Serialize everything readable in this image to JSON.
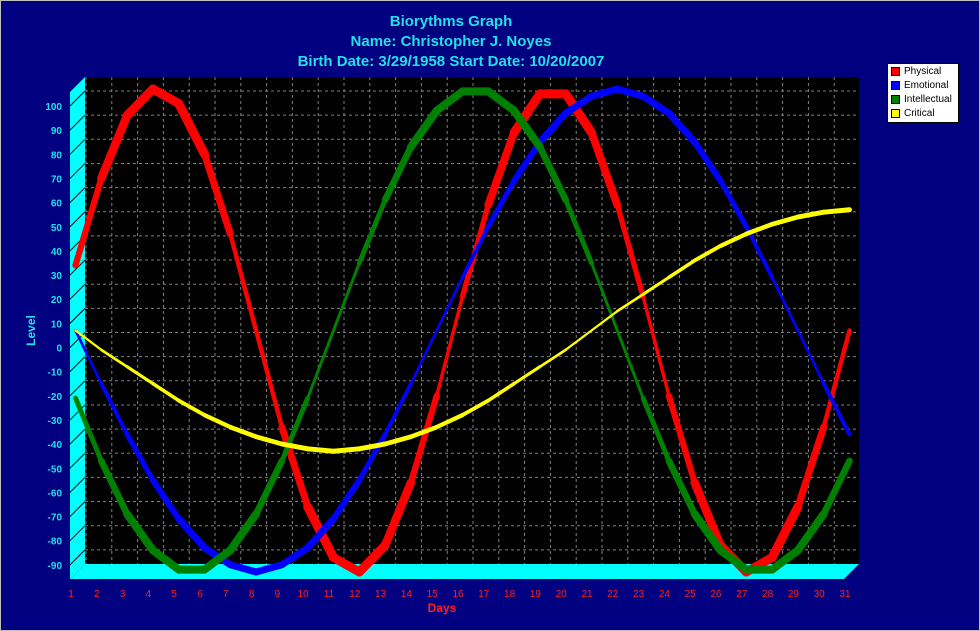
{
  "title_lines": [
    "Biorythms Graph",
    "Name: Christopher J. Noyes",
    "Birth Date: 3/29/1958 Start Date: 10/20/2007"
  ],
  "colors": {
    "background": "#000080",
    "plot_bg": "#000000",
    "wall": "#00ffff",
    "title": "#22e0e8",
    "axis_label": "#22e0e8",
    "x_tick": "#ff2020",
    "y_tick": "#22e0e8",
    "grid": "#808080"
  },
  "chart_data": {
    "type": "line",
    "title": "Biorythms Graph",
    "subtitle": [
      "Name: Christopher J. Noyes",
      "Birth Date: 3/29/1958 Start Date: 10/20/2007"
    ],
    "xlabel": "Days",
    "ylabel": "Level",
    "x": [
      1,
      2,
      3,
      4,
      5,
      6,
      7,
      8,
      9,
      10,
      11,
      12,
      13,
      14,
      15,
      16,
      17,
      18,
      19,
      20,
      21,
      22,
      23,
      24,
      25,
      26,
      27,
      28,
      29,
      30,
      31
    ],
    "xlim": [
      1,
      31
    ],
    "ylim": [
      -100,
      100
    ],
    "yticks": [
      100,
      90,
      80,
      70,
      60,
      50,
      40,
      30,
      20,
      10,
      0,
      -10,
      -20,
      -30,
      -40,
      -50,
      -60,
      -70,
      -80,
      -90
    ],
    "grid": true,
    "legend_position": "top-right",
    "series": [
      {
        "name": "Physical",
        "color": "#ff0000",
        "values": [
          27,
          63,
          89,
          100,
          94,
          73,
          40,
          0,
          -40,
          -73,
          -94,
          -100,
          -89,
          -63,
          -27,
          14,
          52,
          82,
          98,
          98,
          82,
          52,
          14,
          -27,
          -63,
          -89,
          -100,
          -94,
          -73,
          -40,
          0
        ]
      },
      {
        "name": "Emotional",
        "color": "#0000ff",
        "values": [
          0,
          -22,
          -43,
          -62,
          -78,
          -90,
          -97,
          -100,
          -97,
          -90,
          -78,
          -62,
          -43,
          -22,
          0,
          22,
          43,
          62,
          78,
          90,
          97,
          100,
          97,
          90,
          78,
          62,
          43,
          22,
          0,
          -22,
          -43
        ]
      },
      {
        "name": "Intellectual",
        "color": "#008000",
        "values": [
          -28,
          -54,
          -76,
          -91,
          -99,
          -99,
          -91,
          -76,
          -54,
          -28,
          0,
          28,
          54,
          76,
          91,
          99,
          99,
          91,
          76,
          54,
          28,
          0,
          -28,
          -54,
          -76,
          -91,
          -99,
          -99,
          -91,
          -76,
          -54
        ]
      },
      {
        "name": "Critical",
        "color": "#ffff00",
        "values": [
          0,
          -8,
          -15,
          -22,
          -29,
          -35,
          -40,
          -44,
          -47,
          -49,
          -50,
          -49,
          -47,
          -44,
          -40,
          -35,
          -29,
          -22,
          -15,
          -8,
          0,
          8,
          15,
          22,
          29,
          35,
          40,
          44,
          47,
          49,
          50
        ]
      }
    ]
  }
}
